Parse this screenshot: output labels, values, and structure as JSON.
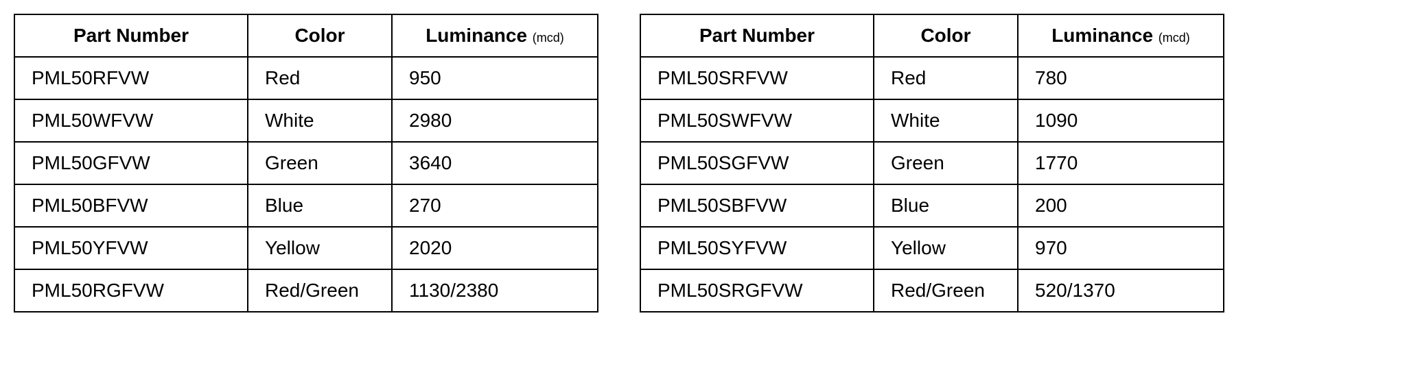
{
  "tables": [
    {
      "columns": {
        "part": "Part Number",
        "color": "Color",
        "luminance_label": "Luminance",
        "luminance_unit": "(mcd)"
      },
      "rows": [
        {
          "part": "PML50RFVW",
          "color": "Red",
          "luminance": "950"
        },
        {
          "part": "PML50WFVW",
          "color": "White",
          "luminance": "2980"
        },
        {
          "part": "PML50GFVW",
          "color": "Green",
          "luminance": "3640"
        },
        {
          "part": "PML50BFVW",
          "color": "Blue",
          "luminance": "270"
        },
        {
          "part": "PML50YFVW",
          "color": "Yellow",
          "luminance": "2020"
        },
        {
          "part": "PML50RGFVW",
          "color": "Red/Green",
          "luminance": "1130/2380"
        }
      ]
    },
    {
      "columns": {
        "part": "Part Number",
        "color": "Color",
        "luminance_label": "Luminance",
        "luminance_unit": "(mcd)"
      },
      "rows": [
        {
          "part": "PML50SRFVW",
          "color": "Red",
          "luminance": "780"
        },
        {
          "part": "PML50SWFVW",
          "color": "White",
          "luminance": "1090"
        },
        {
          "part": "PML50SGFVW",
          "color": "Green",
          "luminance": "1770"
        },
        {
          "part": "PML50SBFVW",
          "color": "Blue",
          "luminance": "200"
        },
        {
          "part": "PML50SYFVW",
          "color": "Yellow",
          "luminance": "970"
        },
        {
          "part": "PML50SRGFVW",
          "color": "Red/Green",
          "luminance": "520/1370"
        }
      ]
    }
  ],
  "style": {
    "border_color": "#000000",
    "text_color": "#000000",
    "background_color": "#ffffff",
    "header_fontsize": 28,
    "cell_fontsize": 28,
    "unit_fontsize": 18,
    "border_width": 2
  }
}
